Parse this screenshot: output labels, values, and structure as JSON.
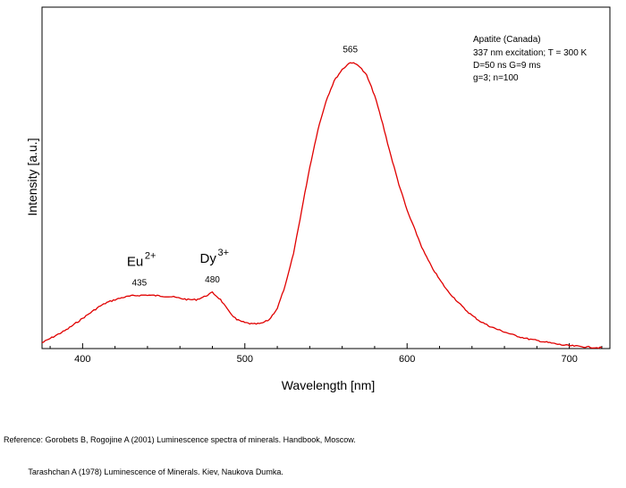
{
  "chart_data": {
    "type": "line",
    "xlabel": "Wavelength [nm]",
    "ylabel": "Intensity [a.u.]",
    "xlim": [
      375,
      725
    ],
    "ylim": [
      0,
      1.0
    ],
    "xticks": [
      400,
      500,
      600,
      700
    ],
    "xtick_labels": [
      "400",
      "500",
      "600",
      "700"
    ],
    "y_tick_labels_shown": false,
    "grid": false,
    "series": [
      {
        "color": "#e00000",
        "x": [
          375,
          380,
          385,
          390,
          395,
          400,
          405,
          410,
          415,
          420,
          425,
          430,
          435,
          440,
          445,
          450,
          455,
          460,
          465,
          470,
          475,
          480,
          485,
          490,
          495,
          500,
          505,
          510,
          515,
          520,
          525,
          530,
          535,
          540,
          545,
          550,
          555,
          560,
          565,
          570,
          575,
          580,
          585,
          590,
          595,
          600,
          605,
          610,
          615,
          620,
          625,
          630,
          635,
          640,
          645,
          650,
          655,
          660,
          665,
          670,
          675,
          680,
          685,
          690,
          695,
          700,
          705,
          710,
          715,
          720
        ],
        "y": [
          0.02,
          0.035,
          0.05,
          0.065,
          0.085,
          0.105,
          0.125,
          0.145,
          0.16,
          0.17,
          0.178,
          0.183,
          0.185,
          0.186,
          0.184,
          0.182,
          0.18,
          0.175,
          0.17,
          0.17,
          0.18,
          0.195,
          0.17,
          0.13,
          0.1,
          0.09,
          0.085,
          0.087,
          0.1,
          0.14,
          0.22,
          0.33,
          0.48,
          0.63,
          0.76,
          0.86,
          0.93,
          0.97,
          0.995,
          0.985,
          0.95,
          0.88,
          0.78,
          0.67,
          0.57,
          0.48,
          0.41,
          0.34,
          0.285,
          0.24,
          0.2,
          0.17,
          0.14,
          0.115,
          0.095,
          0.08,
          0.068,
          0.058,
          0.048,
          0.04,
          0.033,
          0.028,
          0.023,
          0.018,
          0.013,
          0.01,
          0.008,
          0.006,
          0.004,
          0.003
        ]
      }
    ],
    "annotations": [
      {
        "text": "Eu",
        "sup": "2+",
        "x": 435,
        "label": "435"
      },
      {
        "text": "Dy",
        "sup": "3+",
        "x": 480,
        "label": "480"
      },
      {
        "x": 565,
        "label": "565"
      }
    ],
    "note_lines": [
      "Apatite (Canada)",
      "337 nm excitation; T = 300 K",
      "D=50 ns G=9 ms",
      "g=3; n=100"
    ]
  },
  "reference_lines": [
    "Reference: Gorobets B, Rogojine A (2001) Luminescence spectra of minerals. Handbook, Moscow.",
    "           Tarashchan A (1978) Luminescence of Minerals. Kiev, Naukova Dumka."
  ]
}
